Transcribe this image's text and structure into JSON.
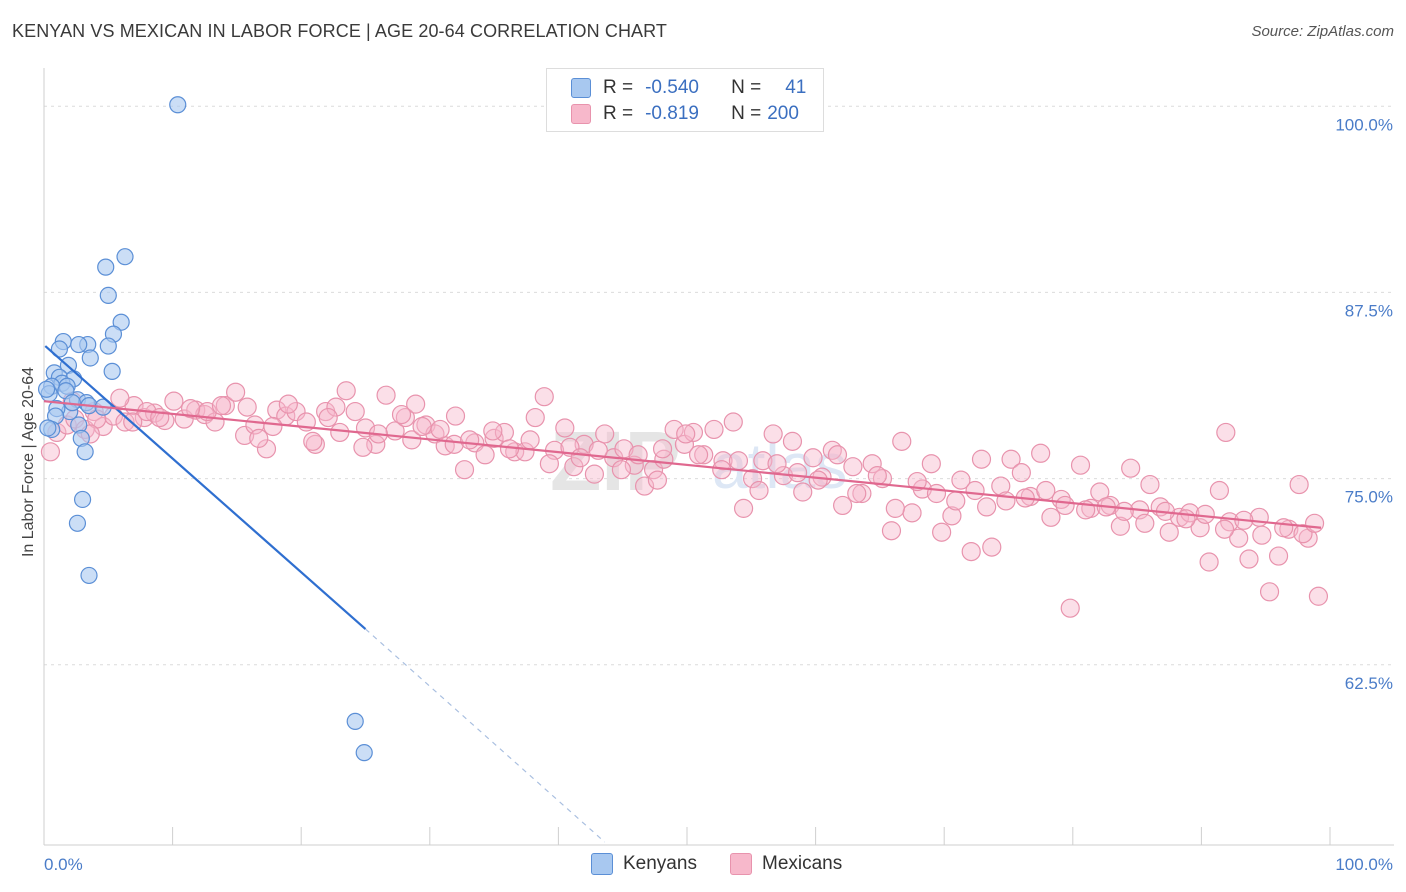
{
  "header": {
    "title": "KENYAN VS MEXICAN IN LABOR FORCE | AGE 20-64 CORRELATION CHART",
    "source": "Source: ZipAtlas.com"
  },
  "legend_top": {
    "rows": [
      {
        "r_label": "R =",
        "r_value": "-0.540",
        "n_label": "N =",
        "n_value": "41"
      },
      {
        "r_label": "R =",
        "r_value": "-0.819",
        "n_label": "N =",
        "n_value": "200"
      }
    ]
  },
  "legend_bottom": {
    "kenyans": "Kenyans",
    "mexicans": "Mexicans"
  },
  "colors": {
    "kenyan_fill": "#a8c8f0",
    "kenyan_stroke": "#5b8fd6",
    "kenyan_line": "#2f6fd0",
    "mexican_fill": "#f7b8cb",
    "mexican_stroke": "#e893ad",
    "mexican_line": "#e0688f",
    "tick_text": "#4a7cc8",
    "grid": "#dcdcdc"
  },
  "chart_data": {
    "type": "scatter",
    "title": "KENYAN VS MEXICAN IN LABOR FORCE | AGE 20-64 CORRELATION CHART",
    "xlabel": "",
    "ylabel": "In Labor Force | Age 20-64",
    "xlim": [
      0,
      100
    ],
    "ylim": [
      50.4,
      102.3
    ],
    "x_tick_labels": [
      "0.0%",
      "100.0%"
    ],
    "y_ticks": [
      62.5,
      75.0,
      87.5,
      100.0
    ],
    "y_tick_labels": [
      "62.5%",
      "75.0%",
      "87.5%",
      "100.0%"
    ],
    "grid": true,
    "legend_position": "top-center",
    "series": [
      {
        "name": "Kenyans",
        "r": -0.54,
        "n": 41,
        "trend": {
          "x": [
            0.1,
            25.0
          ],
          "y": [
            83.9,
            64.9
          ],
          "dashed_to": {
            "x": 43.6,
            "y": 50.6
          }
        },
        "points": [
          [
            10.4,
            100.1
          ],
          [
            6.3,
            89.9
          ],
          [
            4.8,
            89.2
          ],
          [
            5.0,
            87.3
          ],
          [
            6.0,
            85.5
          ],
          [
            5.4,
            84.7
          ],
          [
            1.5,
            84.2
          ],
          [
            3.4,
            84.0
          ],
          [
            2.7,
            84.0
          ],
          [
            1.2,
            83.7
          ],
          [
            5.0,
            83.9
          ],
          [
            3.6,
            83.1
          ],
          [
            1.9,
            82.6
          ],
          [
            0.8,
            82.1
          ],
          [
            1.2,
            81.8
          ],
          [
            2.3,
            81.7
          ],
          [
            5.3,
            82.2
          ],
          [
            1.4,
            81.4
          ],
          [
            0.6,
            81.2
          ],
          [
            1.8,
            81.2
          ],
          [
            0.4,
            80.7
          ],
          [
            2.6,
            80.3
          ],
          [
            3.3,
            80.1
          ],
          [
            3.5,
            79.9
          ],
          [
            2.0,
            79.5
          ],
          [
            1.0,
            79.7
          ],
          [
            0.9,
            79.2
          ],
          [
            2.7,
            78.6
          ],
          [
            0.6,
            78.3
          ],
          [
            2.9,
            77.7
          ],
          [
            3.2,
            76.8
          ],
          [
            3.0,
            73.6
          ],
          [
            2.6,
            72.0
          ],
          [
            3.5,
            68.5
          ],
          [
            24.2,
            58.7
          ],
          [
            24.9,
            56.6
          ],
          [
            0.2,
            81.0
          ],
          [
            1.7,
            80.9
          ],
          [
            0.3,
            78.4
          ],
          [
            4.6,
            79.8
          ],
          [
            2.2,
            80.1
          ]
        ]
      },
      {
        "name": "Mexicans",
        "r": -0.819,
        "n": 200,
        "trend": {
          "x": [
            0.0,
            99.3
          ],
          "y": [
            80.2,
            71.7
          ]
        },
        "points": [
          [
            0.5,
            76.8
          ],
          [
            1.0,
            78.1
          ],
          [
            1.8,
            78.6
          ],
          [
            2.4,
            79.0
          ],
          [
            3.2,
            78.3
          ],
          [
            3.9,
            79.5
          ],
          [
            4.6,
            78.5
          ],
          [
            5.4,
            79.2
          ],
          [
            6.3,
            78.8
          ],
          [
            7.0,
            79.9
          ],
          [
            7.8,
            79.1
          ],
          [
            8.6,
            79.4
          ],
          [
            9.4,
            78.9
          ],
          [
            10.1,
            80.2
          ],
          [
            10.9,
            79.0
          ],
          [
            11.8,
            79.6
          ],
          [
            12.5,
            79.3
          ],
          [
            13.3,
            78.8
          ],
          [
            14.1,
            79.9
          ],
          [
            14.9,
            80.8
          ],
          [
            15.6,
            77.9
          ],
          [
            16.4,
            78.6
          ],
          [
            17.3,
            77.0
          ],
          [
            18.1,
            79.6
          ],
          [
            18.8,
            79.2
          ],
          [
            19.6,
            79.5
          ],
          [
            20.4,
            78.8
          ],
          [
            21.1,
            77.3
          ],
          [
            21.9,
            79.5
          ],
          [
            22.7,
            79.8
          ],
          [
            23.5,
            80.9
          ],
          [
            24.2,
            79.5
          ],
          [
            25.0,
            78.4
          ],
          [
            25.8,
            77.3
          ],
          [
            26.6,
            80.6
          ],
          [
            27.3,
            78.2
          ],
          [
            28.1,
            79.1
          ],
          [
            28.9,
            80.0
          ],
          [
            29.7,
            78.6
          ],
          [
            30.4,
            78.0
          ],
          [
            31.2,
            77.2
          ],
          [
            32.0,
            79.2
          ],
          [
            32.7,
            75.6
          ],
          [
            33.5,
            77.4
          ],
          [
            34.3,
            76.6
          ],
          [
            35.0,
            77.7
          ],
          [
            35.8,
            78.1
          ],
          [
            36.6,
            76.8
          ],
          [
            37.4,
            76.8
          ],
          [
            38.2,
            79.1
          ],
          [
            38.9,
            80.5
          ],
          [
            39.7,
            76.9
          ],
          [
            40.5,
            78.4
          ],
          [
            41.2,
            75.8
          ],
          [
            42.0,
            77.3
          ],
          [
            42.8,
            75.3
          ],
          [
            43.6,
            78.0
          ],
          [
            44.3,
            76.4
          ],
          [
            45.1,
            77.0
          ],
          [
            45.9,
            75.9
          ],
          [
            46.7,
            74.5
          ],
          [
            47.4,
            75.6
          ],
          [
            48.2,
            76.3
          ],
          [
            49.0,
            78.3
          ],
          [
            49.8,
            77.3
          ],
          [
            50.5,
            78.1
          ],
          [
            51.3,
            76.6
          ],
          [
            52.1,
            78.3
          ],
          [
            52.8,
            76.2
          ],
          [
            53.6,
            78.8
          ],
          [
            54.4,
            73.0
          ],
          [
            55.1,
            75.0
          ],
          [
            55.9,
            76.2
          ],
          [
            56.7,
            78.0
          ],
          [
            57.5,
            75.2
          ],
          [
            58.2,
            77.5
          ],
          [
            59.0,
            74.1
          ],
          [
            59.8,
            76.4
          ],
          [
            60.5,
            75.1
          ],
          [
            61.3,
            76.9
          ],
          [
            62.1,
            73.2
          ],
          [
            62.9,
            75.8
          ],
          [
            63.6,
            74.0
          ],
          [
            64.4,
            76.0
          ],
          [
            65.2,
            75.0
          ],
          [
            65.9,
            71.5
          ],
          [
            66.7,
            77.5
          ],
          [
            67.5,
            72.7
          ],
          [
            68.3,
            74.3
          ],
          [
            69.0,
            76.0
          ],
          [
            69.8,
            71.4
          ],
          [
            70.6,
            72.5
          ],
          [
            71.3,
            74.9
          ],
          [
            72.1,
            70.1
          ],
          [
            72.9,
            76.3
          ],
          [
            73.7,
            70.4
          ],
          [
            74.4,
            74.5
          ],
          [
            75.2,
            76.3
          ],
          [
            76.0,
            75.4
          ],
          [
            76.7,
            73.8
          ],
          [
            77.5,
            76.7
          ],
          [
            78.3,
            72.4
          ],
          [
            79.1,
            73.6
          ],
          [
            79.8,
            66.3
          ],
          [
            80.6,
            75.9
          ],
          [
            81.4,
            73.0
          ],
          [
            82.1,
            74.1
          ],
          [
            82.9,
            73.2
          ],
          [
            83.7,
            71.8
          ],
          [
            84.5,
            75.7
          ],
          [
            85.2,
            72.9
          ],
          [
            86.0,
            74.6
          ],
          [
            86.8,
            73.1
          ],
          [
            87.5,
            71.4
          ],
          [
            88.3,
            72.4
          ],
          [
            89.1,
            72.7
          ],
          [
            89.9,
            71.7
          ],
          [
            90.6,
            69.4
          ],
          [
            91.4,
            74.2
          ],
          [
            92.2,
            72.1
          ],
          [
            92.9,
            71.0
          ],
          [
            93.7,
            69.6
          ],
          [
            94.5,
            72.4
          ],
          [
            95.3,
            67.4
          ],
          [
            96.0,
            69.8
          ],
          [
            96.8,
            71.6
          ],
          [
            97.6,
            74.6
          ],
          [
            98.3,
            71.0
          ],
          [
            99.1,
            67.1
          ],
          [
            91.9,
            78.1
          ],
          [
            48.1,
            77.0
          ],
          [
            49.9,
            78.0
          ],
          [
            12.7,
            79.5
          ],
          [
            11.4,
            79.7
          ],
          [
            15.8,
            79.8
          ],
          [
            16.7,
            77.7
          ],
          [
            2.2,
            80.2
          ],
          [
            4.1,
            79.0
          ],
          [
            6.9,
            78.8
          ],
          [
            8.0,
            79.5
          ],
          [
            3.6,
            78.0
          ],
          [
            5.9,
            80.4
          ],
          [
            9.0,
            79.1
          ],
          [
            13.8,
            79.9
          ],
          [
            17.8,
            78.5
          ],
          [
            19.0,
            80.0
          ],
          [
            20.9,
            77.5
          ],
          [
            22.1,
            79.1
          ],
          [
            23.0,
            78.1
          ],
          [
            24.8,
            77.1
          ],
          [
            26.0,
            78.0
          ],
          [
            27.8,
            79.3
          ],
          [
            28.6,
            77.6
          ],
          [
            29.4,
            78.5
          ],
          [
            30.8,
            78.3
          ],
          [
            31.9,
            77.3
          ],
          [
            33.1,
            77.6
          ],
          [
            34.9,
            78.2
          ],
          [
            36.2,
            77.0
          ],
          [
            37.8,
            77.6
          ],
          [
            39.3,
            76.0
          ],
          [
            40.9,
            77.1
          ],
          [
            41.7,
            76.4
          ],
          [
            43.1,
            76.9
          ],
          [
            44.9,
            75.6
          ],
          [
            46.2,
            76.6
          ],
          [
            47.7,
            74.9
          ],
          [
            50.9,
            76.6
          ],
          [
            52.7,
            75.6
          ],
          [
            54.0,
            76.2
          ],
          [
            55.6,
            74.2
          ],
          [
            57.0,
            76.0
          ],
          [
            58.6,
            75.4
          ],
          [
            60.2,
            74.9
          ],
          [
            61.7,
            76.6
          ],
          [
            63.2,
            74.0
          ],
          [
            64.8,
            75.2
          ],
          [
            66.2,
            73.0
          ],
          [
            67.9,
            74.8
          ],
          [
            69.4,
            74.0
          ],
          [
            70.9,
            73.5
          ],
          [
            72.4,
            74.2
          ],
          [
            73.3,
            73.1
          ],
          [
            74.8,
            73.5
          ],
          [
            76.3,
            73.7
          ],
          [
            77.9,
            74.2
          ],
          [
            79.4,
            73.2
          ],
          [
            81.0,
            72.9
          ],
          [
            82.6,
            73.1
          ],
          [
            84.0,
            72.8
          ],
          [
            85.6,
            72.0
          ],
          [
            87.2,
            72.8
          ],
          [
            88.8,
            72.3
          ],
          [
            90.3,
            72.6
          ],
          [
            91.8,
            71.6
          ],
          [
            93.3,
            72.2
          ],
          [
            94.7,
            71.2
          ],
          [
            96.4,
            71.7
          ],
          [
            97.9,
            71.3
          ],
          [
            98.8,
            72.0
          ]
        ]
      }
    ]
  }
}
